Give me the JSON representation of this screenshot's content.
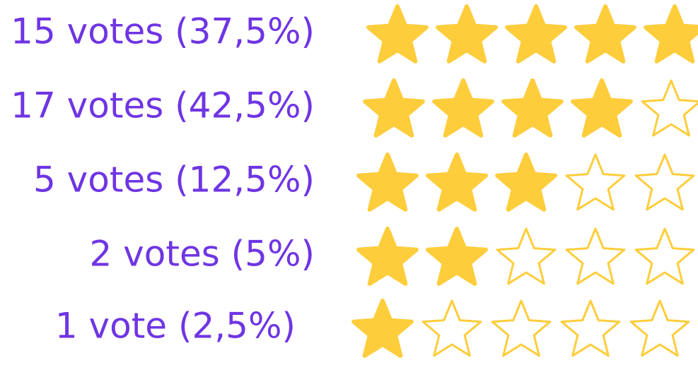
{
  "ratings": [
    {
      "label": "15 votes (37,5%)",
      "stars": 5
    },
    {
      "label": "17 votes (42,5%)",
      "stars": 4
    },
    {
      "label": "5 votes (12,5%)",
      "stars": 3
    },
    {
      "label": "2 votes (5%)",
      "stars": 2
    },
    {
      "label": "1 vote (2,5%)",
      "stars": 1
    }
  ],
  "max_stars": 5,
  "label_color": "#6f35e3",
  "star_color": "#fecd3c"
}
